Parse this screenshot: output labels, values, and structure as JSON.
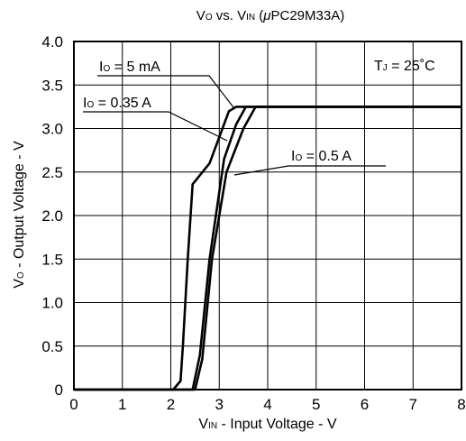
{
  "chart_data": {
    "type": "line",
    "title": {
      "v": "V",
      "o_sub": "O",
      "mid": " vs. V",
      "in_sub": "IN",
      "mu": "μ",
      "part": "PC29M33A)",
      "open": " ("
    },
    "xlabel": {
      "v": "V",
      "sub": "IN",
      "rest": " - Input Voltage - V"
    },
    "ylabel": {
      "v": "V",
      "sub": "O",
      "rest": " - Output Voltage - V"
    },
    "xlim": [
      0,
      8
    ],
    "ylim": [
      0,
      4
    ],
    "x_ticks": [
      "0",
      "1",
      "2",
      "3",
      "4",
      "5",
      "6",
      "7",
      "8"
    ],
    "y_ticks": [
      "0",
      "0.5",
      "1.0",
      "1.5",
      "2.0",
      "2.5",
      "3.0",
      "3.5",
      "4.0"
    ],
    "grid": true,
    "temperature_note": "T",
    "temperature_sub": "J",
    "temperature_value": " = 25˚C",
    "series": [
      {
        "name": "I",
        "name_sub": "O",
        "name_value": " = 5 mA",
        "x": [
          0,
          2.05,
          2.2,
          2.25,
          2.35,
          2.45,
          2.8,
          3.2,
          3.35,
          8
        ],
        "y": [
          0,
          0,
          0.1,
          0.5,
          1.5,
          2.36,
          2.6,
          3.2,
          3.25,
          3.25
        ]
      },
      {
        "name": "I",
        "name_sub": "O",
        "name_value": " = 0.35 A",
        "x": [
          0,
          2.45,
          2.6,
          2.8,
          3.1,
          3.35,
          3.55,
          8
        ],
        "y": [
          0,
          0,
          0.4,
          1.5,
          2.65,
          3.05,
          3.25,
          3.25
        ]
      },
      {
        "name": "I",
        "name_sub": "O",
        "name_value": " = 0.5 A",
        "x": [
          0,
          2.5,
          2.65,
          2.85,
          3.15,
          3.5,
          3.75,
          8
        ],
        "y": [
          0,
          0,
          0.35,
          1.5,
          2.5,
          3.0,
          3.25,
          3.25
        ]
      }
    ]
  }
}
